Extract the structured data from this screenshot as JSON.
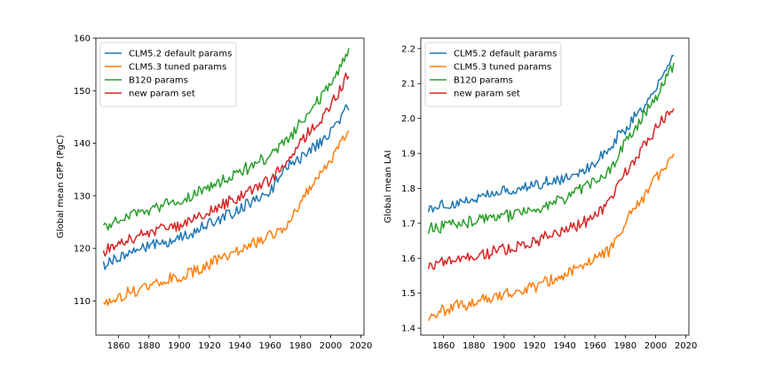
{
  "chart_data": [
    {
      "type": "line",
      "ylabel": "Global mean GPP (PgC)",
      "xlabel": "",
      "xlim": [
        1845,
        2022
      ],
      "ylim": [
        103.5,
        160
      ],
      "xticks": [
        1860,
        1880,
        1900,
        1920,
        1940,
        1960,
        1980,
        2000,
        2020
      ],
      "yticks": [
        110,
        120,
        130,
        140,
        150,
        160
      ],
      "legend_position": "top-left",
      "grid": false,
      "series": [
        {
          "name": "CLM5.2 default params",
          "color": "#1f77b4",
          "trend": [
            [
              1850,
              117.0
            ],
            [
              1870,
              119.5
            ],
            [
              1900,
              122.0
            ],
            [
              1920,
              124.5
            ],
            [
              1940,
              127.5
            ],
            [
              1960,
              131.0
            ],
            [
              1970,
              135.0
            ],
            [
              1980,
              137.0
            ],
            [
              2000,
              142.0
            ],
            [
              2012,
              147.0
            ]
          ]
        },
        {
          "name": "CLM5.3 tuned params",
          "color": "#ff7f0e",
          "trend": [
            [
              1850,
              109.5
            ],
            [
              1870,
              112.0
            ],
            [
              1900,
              114.5
            ],
            [
              1920,
              117.0
            ],
            [
              1940,
              119.5
            ],
            [
              1960,
              122.5
            ],
            [
              1970,
              124.0
            ],
            [
              1980,
              129.0
            ],
            [
              2000,
              137.0
            ],
            [
              2012,
              142.5
            ]
          ]
        },
        {
          "name": "B120 params",
          "color": "#2ca02c",
          "trend": [
            [
              1850,
              124.0
            ],
            [
              1870,
              126.5
            ],
            [
              1900,
              129.0
            ],
            [
              1920,
              131.5
            ],
            [
              1940,
              134.5
            ],
            [
              1960,
              137.5
            ],
            [
              1970,
              140.0
            ],
            [
              1980,
              144.0
            ],
            [
              2000,
              151.0
            ],
            [
              2012,
              157.5
            ]
          ]
        },
        {
          "name": "new param set",
          "color": "#d62728",
          "trend": [
            [
              1850,
              119.5
            ],
            [
              1870,
              122.0
            ],
            [
              1900,
              124.5
            ],
            [
              1920,
              127.0
            ],
            [
              1940,
              130.0
            ],
            [
              1960,
              133.0
            ],
            [
              1970,
              136.0
            ],
            [
              1980,
              140.0
            ],
            [
              2000,
              147.0
            ],
            [
              2012,
              153.5
            ]
          ]
        }
      ]
    },
    {
      "type": "line",
      "ylabel": "Global mean LAI",
      "xlabel": "",
      "xlim": [
        1845,
        2022
      ],
      "ylim": [
        1.38,
        2.23
      ],
      "xticks": [
        1860,
        1880,
        1900,
        1920,
        1940,
        1960,
        1980,
        2000,
        2020
      ],
      "yticks": [
        1.4,
        1.5,
        1.6,
        1.7,
        1.8,
        1.9,
        2.0,
        2.1,
        2.2
      ],
      "legend_position": "top-left",
      "grid": false,
      "series": [
        {
          "name": "CLM5.2 default params",
          "color": "#1f77b4",
          "trend": [
            [
              1850,
              1.745
            ],
            [
              1870,
              1.76
            ],
            [
              1900,
              1.79
            ],
            [
              1920,
              1.81
            ],
            [
              1940,
              1.83
            ],
            [
              1960,
              1.87
            ],
            [
              1970,
              1.92
            ],
            [
              1980,
              1.97
            ],
            [
              2000,
              2.08
            ],
            [
              2012,
              2.19
            ]
          ]
        },
        {
          "name": "CLM5.3 tuned params",
          "color": "#ff7f0e",
          "trend": [
            [
              1850,
              1.44
            ],
            [
              1870,
              1.465
            ],
            [
              1900,
              1.495
            ],
            [
              1920,
              1.52
            ],
            [
              1940,
              1.55
            ],
            [
              1960,
              1.6
            ],
            [
              1970,
              1.62
            ],
            [
              1980,
              1.7
            ],
            [
              2000,
              1.83
            ],
            [
              2012,
              1.9
            ]
          ]
        },
        {
          "name": "B120 params",
          "color": "#2ca02c",
          "trend": [
            [
              1850,
              1.685
            ],
            [
              1870,
              1.7
            ],
            [
              1900,
              1.72
            ],
            [
              1920,
              1.74
            ],
            [
              1940,
              1.77
            ],
            [
              1960,
              1.82
            ],
            [
              1970,
              1.85
            ],
            [
              1980,
              1.93
            ],
            [
              2000,
              2.06
            ],
            [
              2012,
              2.15
            ]
          ]
        },
        {
          "name": "new param set",
          "color": "#d62728",
          "trend": [
            [
              1850,
              1.58
            ],
            [
              1870,
              1.6
            ],
            [
              1900,
              1.625
            ],
            [
              1920,
              1.65
            ],
            [
              1940,
              1.68
            ],
            [
              1960,
              1.72
            ],
            [
              1970,
              1.77
            ],
            [
              1980,
              1.84
            ],
            [
              2000,
              1.97
            ],
            [
              2012,
              2.04
            ]
          ]
        }
      ]
    }
  ]
}
